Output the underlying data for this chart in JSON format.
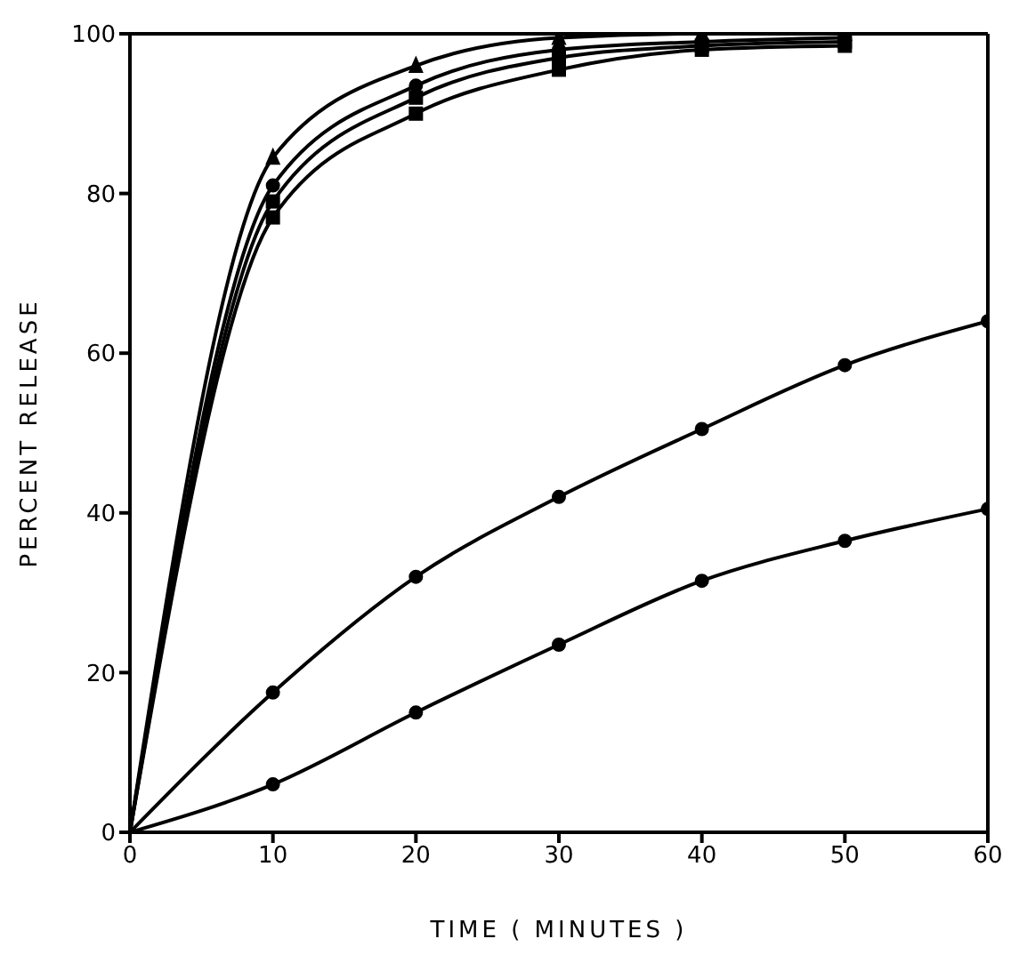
{
  "chart_data": {
    "type": "line",
    "xlabel": "TIME ( MINUTES )",
    "ylabel": "PERCENT RELEASE",
    "x": [
      0,
      10,
      20,
      30,
      40,
      50,
      60
    ],
    "series": [
      {
        "color": "#000000",
        "marker": "triangle",
        "values": [
          0,
          84.5,
          96,
          99.5,
          100,
          100,
          null
        ]
      },
      {
        "color": "#000000",
        "marker": "circle",
        "values": [
          0,
          81,
          93.5,
          98,
          99,
          99.5,
          null
        ]
      },
      {
        "color": "#000000",
        "marker": "square",
        "values": [
          0,
          79,
          92,
          97,
          98.5,
          99,
          null
        ]
      },
      {
        "color": "#000000",
        "marker": "square",
        "values": [
          0,
          77,
          90,
          95.5,
          98,
          98.5,
          null
        ]
      },
      {
        "color": "#000000",
        "marker": "circle",
        "values": [
          0,
          17.5,
          32,
          42,
          50.5,
          58.5,
          64
        ]
      },
      {
        "color": "#000000",
        "marker": "circle",
        "values": [
          0,
          6,
          15,
          23.5,
          31.5,
          36.5,
          40.5
        ]
      }
    ],
    "xlim": [
      0,
      60
    ],
    "xticks": [
      0,
      10,
      20,
      30,
      40,
      50,
      60
    ],
    "ylim": [
      0,
      100
    ],
    "yticks": [
      0,
      20,
      40,
      60,
      80,
      100
    ],
    "grid": false,
    "legend": false
  }
}
